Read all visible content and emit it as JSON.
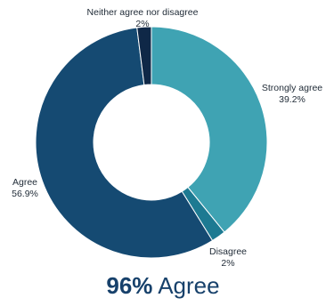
{
  "chart_data": {
    "type": "pie",
    "slices": [
      {
        "label": "Strongly agree",
        "value": 39.2,
        "value_label": "39.2%",
        "color": "#3fa3b3"
      },
      {
        "label": "Disagree",
        "value": 2,
        "value_label": "2%",
        "color": "#1d7a92"
      },
      {
        "label": "Agree",
        "value": 56.9,
        "value_label": "56.9%",
        "color": "#154a72"
      },
      {
        "label": "Neither agree nor disagree",
        "value": 2,
        "value_label": "2%",
        "color": "#0f2847"
      }
    ],
    "donut": true
  },
  "summary": {
    "percent": "96%",
    "text": "Agree"
  },
  "colors": {
    "summary_text": "#17416b"
  }
}
